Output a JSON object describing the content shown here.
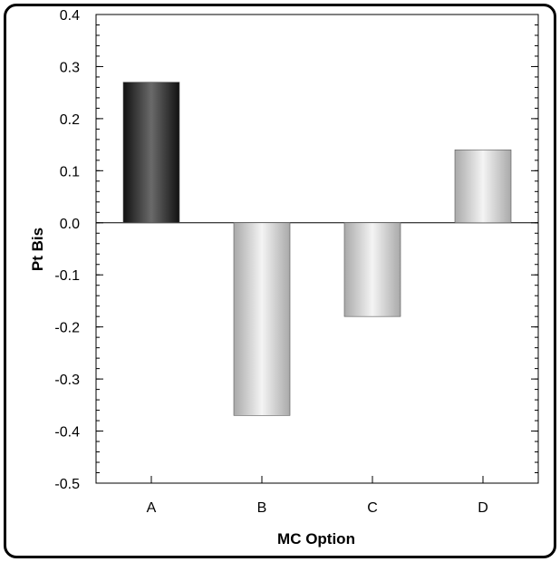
{
  "chart_data": {
    "type": "bar",
    "categories": [
      "A",
      "B",
      "C",
      "D"
    ],
    "values": [
      0.27,
      -0.37,
      -0.18,
      0.14
    ],
    "xlabel": "MC Option",
    "ylabel": "Pt Bis",
    "ylim": [
      -0.5,
      0.4
    ],
    "yticks": [
      0.4,
      0.3,
      0.2,
      0.1,
      0.0,
      -0.1,
      -0.2,
      -0.3,
      -0.4,
      -0.5
    ],
    "ytick_labels": [
      "0.4",
      "0.3",
      "0.2",
      "0.1",
      "0.0",
      "-0.1",
      "-0.2",
      "-0.3",
      "-0.4",
      "-0.5"
    ],
    "grid": false,
    "legend": "none",
    "bar_styles": [
      "dark-gradient",
      "light-gradient",
      "light-gradient",
      "light-gradient"
    ]
  }
}
